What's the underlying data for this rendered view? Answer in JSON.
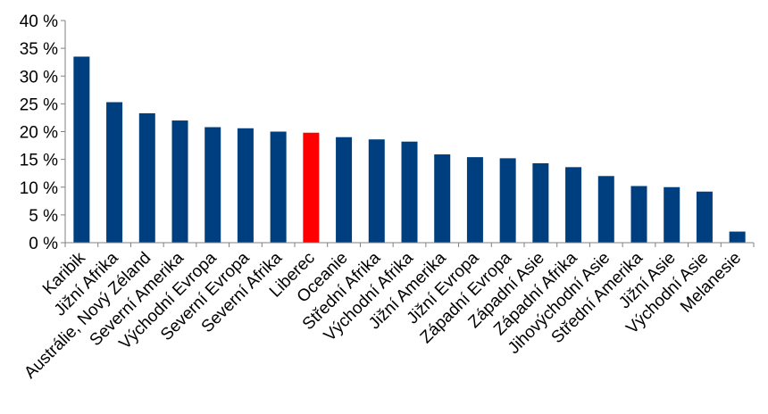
{
  "chart_data": {
    "type": "bar",
    "categories": [
      "Karibik",
      "Jižní Afrika",
      "Austrálie, Nový Zéland",
      "Severní Amerika",
      "Východní Evropa",
      "Severní Evropa",
      "Severní Afrika",
      "Liberec",
      "Oceanie",
      "Střední Afrika",
      "Východní Afrika",
      "Jižní Amerika",
      "Jižní Evropa",
      "Západní Evropa",
      "Západní Asie",
      "Západní Afrika",
      "Jihovýchodní Asie",
      "Střední Amerika",
      "Jižní Asie",
      "Východní Asie",
      "Melanesie"
    ],
    "values": [
      33.5,
      25.3,
      23.3,
      22.0,
      20.8,
      20.6,
      20.0,
      19.8,
      19.0,
      18.6,
      18.2,
      15.9,
      15.4,
      15.2,
      14.3,
      13.6,
      12.0,
      10.2,
      10.0,
      9.2,
      2.0
    ],
    "highlight_category": "Liberec",
    "ylim": [
      0,
      40
    ],
    "yticks": [
      0,
      5,
      10,
      15,
      20,
      25,
      30,
      35,
      40
    ],
    "ytick_suffix": " %",
    "grid": false,
    "colors": {
      "bar": "#003f7f",
      "highlight": "#ff0000",
      "axis": "#808080"
    }
  }
}
